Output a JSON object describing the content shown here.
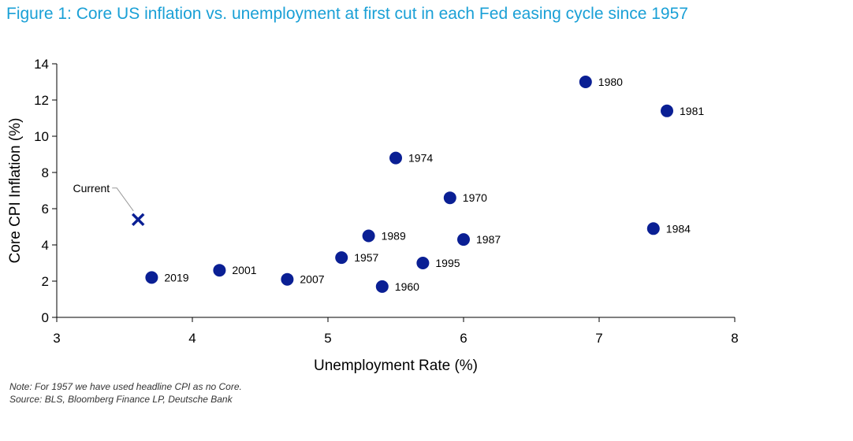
{
  "figure_title": "Figure 1: Core US inflation vs. unemployment at first cut in each Fed easing cycle since 1957",
  "note": "Note: For 1957 we have used headline CPI as no Core.",
  "source": "Source: BLS, Bloomberg Finance LP, Deutsche Bank",
  "colors": {
    "title": "#1aa0d6",
    "marker": "#0a1f94"
  },
  "chart_data": {
    "type": "scatter",
    "xlabel": "Unemployment Rate (%)",
    "ylabel": "Core CPI Inflation (%)",
    "xlim": [
      3,
      8
    ],
    "ylim": [
      0,
      14
    ],
    "x_ticks": [
      "3",
      "4",
      "5",
      "6",
      "7",
      "8"
    ],
    "y_ticks": [
      "0",
      "2",
      "4",
      "6",
      "8",
      "10",
      "12",
      "14"
    ],
    "grid": false,
    "points": [
      {
        "label": "1980",
        "x": 6.9,
        "y": 13.0
      },
      {
        "label": "1981",
        "x": 7.5,
        "y": 11.4
      },
      {
        "label": "1974",
        "x": 5.5,
        "y": 8.8
      },
      {
        "label": "1970",
        "x": 5.9,
        "y": 6.6
      },
      {
        "label": "1984",
        "x": 7.4,
        "y": 4.9
      },
      {
        "label": "1989",
        "x": 5.3,
        "y": 4.5
      },
      {
        "label": "1987",
        "x": 6.0,
        "y": 4.3
      },
      {
        "label": "1957",
        "x": 5.1,
        "y": 3.3
      },
      {
        "label": "1995",
        "x": 5.7,
        "y": 3.0
      },
      {
        "label": "2001",
        "x": 4.2,
        "y": 2.6
      },
      {
        "label": "2019",
        "x": 3.7,
        "y": 2.2
      },
      {
        "label": "2007",
        "x": 4.7,
        "y": 2.1
      },
      {
        "label": "1960",
        "x": 5.4,
        "y": 1.7
      }
    ],
    "current": {
      "label": "Current",
      "x": 3.6,
      "y": 5.4
    }
  }
}
